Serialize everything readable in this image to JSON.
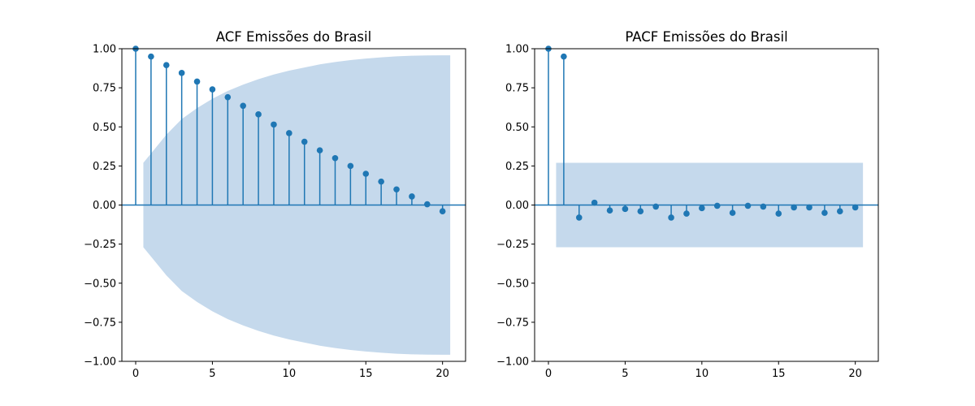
{
  "chart_data": [
    {
      "type": "stem",
      "title": "ACF Emissões do Brasil",
      "xlabel": "",
      "ylabel": "",
      "xlim": [
        -0.9,
        21.5
      ],
      "ylim": [
        -1.0,
        1.0
      ],
      "xticks": [
        0,
        5,
        10,
        15,
        20
      ],
      "yticks": [
        -1.0,
        -0.75,
        -0.5,
        -0.25,
        0.0,
        0.25,
        0.5,
        0.75,
        1.0
      ],
      "ytick_labels": [
        "−1.00",
        "−0.75",
        "−0.50",
        "−0.25",
        "0.00",
        "0.25",
        "0.50",
        "0.75",
        "1.00"
      ],
      "xtick_labels": [
        "0",
        "5",
        "10",
        "15",
        "20"
      ],
      "x": [
        0,
        1,
        2,
        3,
        4,
        5,
        6,
        7,
        8,
        9,
        10,
        11,
        12,
        13,
        14,
        15,
        16,
        17,
        18,
        19,
        20
      ],
      "values": [
        1.0,
        0.95,
        0.895,
        0.845,
        0.79,
        0.74,
        0.69,
        0.635,
        0.58,
        0.515,
        0.46,
        0.405,
        0.35,
        0.3,
        0.25,
        0.2,
        0.15,
        0.1,
        0.055,
        0.005,
        -0.04
      ],
      "confidence_band": {
        "x": [
          0.5,
          1,
          2,
          3,
          4,
          5,
          6,
          7,
          8,
          9,
          10,
          11,
          12,
          13,
          14,
          15,
          16,
          17,
          18,
          19,
          20,
          20.5
        ],
        "upper": [
          0.27,
          0.33,
          0.45,
          0.55,
          0.62,
          0.68,
          0.73,
          0.77,
          0.805,
          0.835,
          0.86,
          0.88,
          0.9,
          0.915,
          0.927,
          0.937,
          0.945,
          0.951,
          0.955,
          0.957,
          0.958,
          0.958
        ]
      },
      "color": "#1f77b4",
      "band_color": "#c5d9ec"
    },
    {
      "type": "stem",
      "title": "PACF Emissões do Brasil",
      "xlabel": "",
      "ylabel": "",
      "xlim": [
        -0.9,
        21.5
      ],
      "ylim": [
        -1.0,
        1.0
      ],
      "xticks": [
        0,
        5,
        10,
        15,
        20
      ],
      "yticks": [
        -1.0,
        -0.75,
        -0.5,
        -0.25,
        0.0,
        0.25,
        0.5,
        0.75,
        1.0
      ],
      "ytick_labels": [
        "−1.00",
        "−0.75",
        "−0.50",
        "−0.25",
        "0.00",
        "0.25",
        "0.50",
        "0.75",
        "1.00"
      ],
      "xtick_labels": [
        "0",
        "5",
        "10",
        "15",
        "20"
      ],
      "x": [
        0,
        1,
        2,
        3,
        4,
        5,
        6,
        7,
        8,
        9,
        10,
        11,
        12,
        13,
        14,
        15,
        16,
        17,
        18,
        19,
        20
      ],
      "values": [
        1.0,
        0.95,
        -0.08,
        0.015,
        -0.035,
        -0.025,
        -0.04,
        -0.01,
        -0.08,
        -0.055,
        -0.02,
        -0.005,
        -0.05,
        -0.005,
        -0.01,
        -0.055,
        -0.015,
        -0.015,
        -0.05,
        -0.04,
        -0.015
      ],
      "confidence_band": {
        "x": [
          0.5,
          20.5
        ],
        "upper": [
          0.27,
          0.27
        ]
      },
      "color": "#1f77b4",
      "band_color": "#c5d9ec"
    }
  ]
}
